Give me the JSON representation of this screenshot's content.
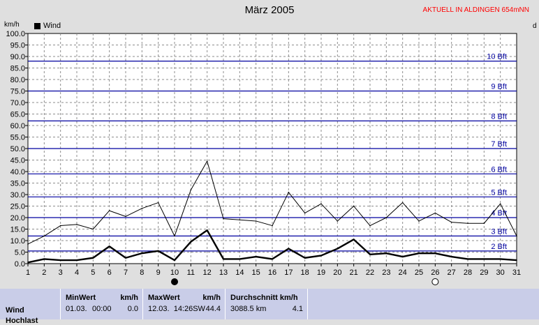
{
  "header": {
    "title": "März 2005",
    "brand": "AKTUELL IN ALDINGEN 654mNN",
    "unit_left": "km/h",
    "unit_right": "d"
  },
  "legend": {
    "label": "Wind"
  },
  "colors": {
    "background": "#dfdfdf",
    "plot": "#ffffff",
    "beaufort_line": "#0000a0",
    "series": "#000000",
    "stats_bg": "#c9cde8"
  },
  "markers": {
    "new_moon_day": 10,
    "full_moon_day": 26
  },
  "chart_data": {
    "type": "line",
    "xlabel": "",
    "ylabel": "km/h",
    "x": [
      1,
      2,
      3,
      4,
      5,
      6,
      7,
      8,
      9,
      10,
      11,
      12,
      13,
      14,
      15,
      16,
      17,
      18,
      19,
      20,
      21,
      22,
      23,
      24,
      25,
      26,
      27,
      28,
      29,
      30,
      31
    ],
    "xlim": [
      1,
      31
    ],
    "ylim": [
      0,
      100
    ],
    "yticks": [
      "0.0",
      "5.0",
      "10.0",
      "15.0",
      "20.0",
      "25.0",
      "30.0",
      "35.0",
      "40.0",
      "45.0",
      "50.0",
      "55.0",
      "60.0",
      "65.0",
      "70.0",
      "75.0",
      "80.0",
      "85.0",
      "90.0",
      "95.0",
      "100.0"
    ],
    "grid": true,
    "legend_position": "top-left",
    "series": [
      {
        "name": "Wind",
        "style": "thick",
        "values": [
          0.5,
          2,
          1.5,
          1.5,
          2.5,
          7.5,
          2.5,
          4.5,
          5.5,
          1.5,
          9.5,
          14.5,
          2,
          2,
          3,
          2,
          6.5,
          2.5,
          3.5,
          6.5,
          10.5,
          4,
          4.5,
          3,
          4.5,
          4.5,
          3,
          2,
          2,
          2,
          1.5
        ]
      },
      {
        "style": "thin",
        "values": [
          8.5,
          12,
          16.5,
          17,
          15,
          23,
          20.5,
          24,
          26.5,
          12,
          32,
          44.5,
          19.5,
          19,
          18.5,
          16.5,
          31,
          22,
          26,
          18.5,
          25,
          16.5,
          20,
          26.5,
          18.5,
          22,
          18,
          17.5,
          17.5,
          26,
          12
        ]
      }
    ],
    "beaufort_levels": [
      {
        "label": "2 Bft",
        "value": 5.5
      },
      {
        "label": "3 Bft",
        "value": 12
      },
      {
        "label": "4 Bft",
        "value": 20
      },
      {
        "label": "5 Bft",
        "value": 29
      },
      {
        "label": "6 Bft",
        "value": 39
      },
      {
        "label": "7 Bft",
        "value": 50
      },
      {
        "label": "8 Bft",
        "value": 62
      },
      {
        "label": "9 Bft",
        "value": 75
      },
      {
        "label": "10 Bft",
        "value": 88
      }
    ]
  },
  "stats": {
    "row1": "Wind",
    "row2": "Hochlast",
    "min": {
      "title": "MinWert",
      "unit": "km/h",
      "date": "01.03.",
      "time": "00:00",
      "value": "0.0"
    },
    "max": {
      "title": "MaxWert",
      "unit": "km/h",
      "datetime": "12.03.  14:26SW",
      "value": "44.4"
    },
    "avg": {
      "title": "Durchschnitt km/h",
      "distance": "3088.5 km",
      "value": "4.1"
    }
  }
}
